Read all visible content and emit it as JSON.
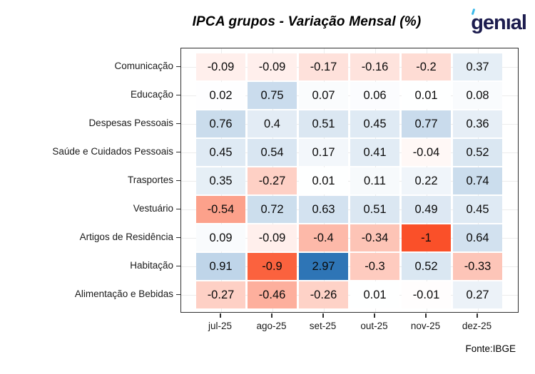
{
  "header": {
    "logo_text": "genıal"
  },
  "chart_data": {
    "type": "heatmap",
    "title": "IPCA grupos - Variação Mensal (%)",
    "source": "Fonte:IBGE",
    "x_categories": [
      "jul-25",
      "ago-25",
      "set-25",
      "out-25",
      "nov-25",
      "dez-25"
    ],
    "y_categories": [
      "Comunicação",
      "Educação",
      "Despesas Pessoais",
      "Saúde e Cuidados Pessoais",
      "Trasportes",
      "Vestuário",
      "Artigos de Residência",
      "Habitação",
      "Alimentação e Bebidas"
    ],
    "values": [
      [
        -0.09,
        -0.09,
        -0.17,
        -0.16,
        -0.2,
        0.37
      ],
      [
        0.02,
        0.75,
        0.07,
        0.06,
        0.01,
        0.08
      ],
      [
        0.76,
        0.4,
        0.51,
        0.45,
        0.77,
        0.36
      ],
      [
        0.45,
        0.54,
        0.17,
        0.41,
        -0.04,
        0.52
      ],
      [
        0.35,
        -0.27,
        0.01,
        0.11,
        0.22,
        0.74
      ],
      [
        -0.54,
        0.72,
        0.63,
        0.51,
        0.49,
        0.45
      ],
      [
        0.09,
        -0.09,
        -0.4,
        -0.34,
        -1,
        0.64
      ],
      [
        0.91,
        -0.9,
        2.97,
        -0.3,
        0.52,
        -0.33
      ],
      [
        -0.27,
        -0.46,
        -0.26,
        0.01,
        -0.01,
        0.27
      ]
    ],
    "color_scale": {
      "negative_max_color": "#fa5029",
      "midpoint_color": "#ffffff",
      "positive_max_color": "#2e75b6",
      "domain": [
        -1,
        2.97
      ]
    },
    "layout_hints": {
      "grid": "faint light-gray gridlines at tick positions",
      "legend": "none",
      "cell_text_color": "#0a0a0a"
    }
  }
}
